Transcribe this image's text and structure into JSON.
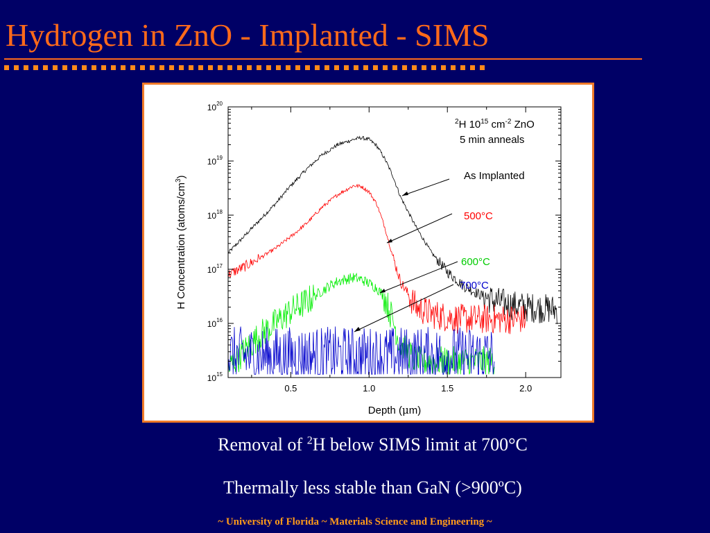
{
  "slide": {
    "title": "Hydrogen in ZnO - Implanted - SIMS",
    "caption1_prefix": "Removal of ",
    "caption1_sup": "2",
    "caption1_suffix": "H below SIMS limit at 700°C",
    "caption2": "Thermally less stable than GaN (>900ºC)",
    "footer": "~ University of Florida ~ Materials Science and Engineering ~",
    "colors": {
      "background": "#000066",
      "title": "#ff6a1a",
      "bullets": "#ff8a1a",
      "caption": "#ffffff",
      "footer": "#ff9a1a",
      "chart_border": "#f07a28"
    }
  },
  "chart_data": {
    "type": "line",
    "xlabel_prefix": "Depth (",
    "xlabel_mu": "μ",
    "xlabel_suffix": "m)",
    "ylabel": "H Concentration (atoms/cm",
    "ylabel_sup": "3",
    "ylabel_close": ")",
    "xlim": [
      0.1,
      2.225
    ],
    "ylim": [
      1000000000000000.0,
      1e+20
    ],
    "yscale": "log",
    "grid": false,
    "x_ticks": [
      {
        "value": 0.5,
        "label": "0.5"
      },
      {
        "value": 1.0,
        "label": "1.0"
      },
      {
        "value": 1.5,
        "label": "1.5"
      },
      {
        "value": 2.0,
        "label": "2.0"
      }
    ],
    "y_ticks": [
      {
        "base": "10",
        "exp": "15"
      },
      {
        "base": "10",
        "exp": "16"
      },
      {
        "base": "10",
        "exp": "17"
      },
      {
        "base": "10",
        "exp": "18"
      },
      {
        "base": "10",
        "exp": "19"
      },
      {
        "base": "10",
        "exp": "20"
      }
    ],
    "annotation": {
      "line1_sup1": "2",
      "line1_a": "H 10",
      "line1_sup2": "15",
      "line1_b": " cm",
      "line1_sup3": "-2",
      "line1_c": " ZnO",
      "line2": "5 min anneals"
    },
    "series": [
      {
        "name": "As Implanted",
        "color": "#000000",
        "x": [
          0.1,
          0.2,
          0.3,
          0.4,
          0.5,
          0.6,
          0.7,
          0.8,
          0.9,
          0.95,
          1.0,
          1.05,
          1.1,
          1.15,
          1.2,
          1.3,
          1.4,
          1.5,
          1.6,
          1.7,
          1.8,
          1.9,
          2.0,
          2.1,
          2.2
        ],
        "y": [
          2e+17,
          4e+17,
          8e+17,
          1.6e+18,
          3.5e+18,
          7e+18,
          1.3e+19,
          2e+19,
          2.5e+19,
          2.7e+19,
          2.5e+19,
          1.9e+19,
          1.1e+19,
          5.5e+18,
          2.2e+18,
          6e+17,
          2e+17,
          9e+16,
          5e+16,
          3.5e+16,
          2.6e+16,
          2.2e+16,
          2e+16,
          1.9e+16,
          1.8e+16
        ]
      },
      {
        "name": "500°C",
        "color": "#ff0000",
        "x": [
          0.1,
          0.2,
          0.3,
          0.4,
          0.5,
          0.6,
          0.7,
          0.8,
          0.9,
          0.95,
          1.0,
          1.05,
          1.1,
          1.15,
          1.2,
          1.3,
          1.4,
          1.5,
          1.6,
          1.7,
          1.8,
          1.9,
          2.0
        ],
        "y": [
          8e+16,
          1.1e+17,
          1.6e+17,
          2.4e+17,
          4e+17,
          7e+17,
          1.4e+18,
          2.4e+18,
          3.5e+18,
          3.4e+18,
          2.7e+18,
          1.6e+18,
          6e+17,
          1.8e+17,
          6e+16,
          2e+16,
          1.5e+16,
          1.3e+16,
          1.2e+16,
          1.2e+16,
          1.2e+16,
          1.2e+16,
          1.2e+16
        ]
      },
      {
        "name": "600°C",
        "color": "#00ee00",
        "x": [
          0.1,
          0.2,
          0.3,
          0.4,
          0.5,
          0.6,
          0.7,
          0.75,
          0.8,
          0.85,
          0.9,
          0.95,
          1.0,
          1.05,
          1.1,
          1.15,
          1.2,
          1.3,
          1.4,
          1.5,
          1.6,
          1.7,
          1.8
        ],
        "y": [
          1500000000000000.0,
          3000000000000000.0,
          6000000000000000.0,
          1e+16,
          1.7e+16,
          2.5e+16,
          4e+16,
          5e+16,
          6e+16,
          6.5e+16,
          7e+16,
          6.5e+16,
          5.5e+16,
          4.5e+16,
          3e+16,
          1.2e+16,
          4000000000000000.0,
          2000000000000000.0,
          2000000000000000.0,
          2000000000000000.0,
          2000000000000000.0,
          2000000000000000.0,
          2000000000000000.0
        ]
      },
      {
        "name": "700°C",
        "color": "#0000cc",
        "x": [
          0.1,
          0.2,
          0.3,
          0.4,
          0.5,
          0.6,
          0.7,
          0.8,
          0.9,
          1.0,
          1.1,
          1.2,
          1.3,
          1.4,
          1.5,
          1.6,
          1.7,
          1.8
        ],
        "y": [
          2500000000000000.0,
          2500000000000000.0,
          2500000000000000.0,
          2500000000000000.0,
          2500000000000000.0,
          2500000000000000.0,
          2500000000000000.0,
          2500000000000000.0,
          2500000000000000.0,
          2500000000000000.0,
          2500000000000000.0,
          2500000000000000.0,
          2500000000000000.0,
          2500000000000000.0,
          2500000000000000.0,
          2500000000000000.0,
          2500000000000000.0,
          2500000000000000.0
        ]
      }
    ]
  }
}
